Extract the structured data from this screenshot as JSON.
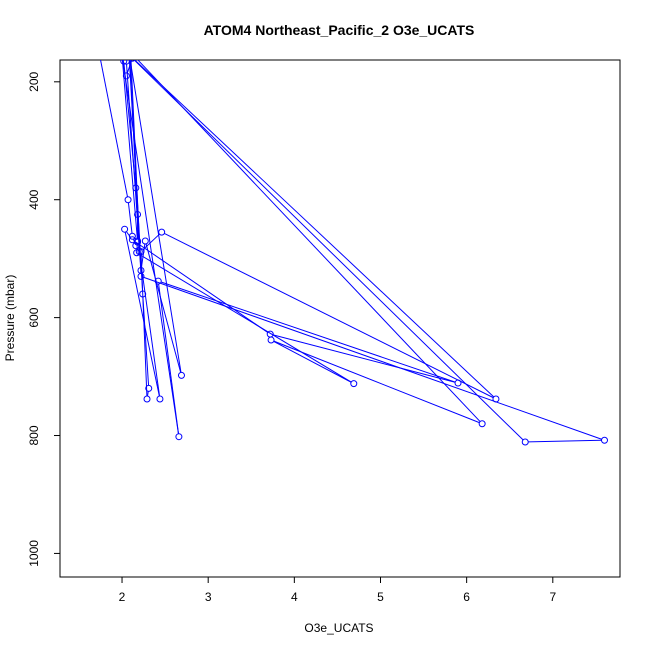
{
  "chart_data": {
    "type": "scatter",
    "title": "ATOM4 Northeast_Pacific_2 O3e_UCATS",
    "xlabel": "O3e_UCATS",
    "ylabel": "Pressure (mbar)",
    "xlim": [
      1.28,
      7.78
    ],
    "ylim": [
      1040,
      163
    ],
    "y_reversed": true,
    "x_ticks": [
      2,
      3,
      4,
      5,
      6,
      7
    ],
    "y_ticks": [
      200,
      400,
      600,
      800,
      1000
    ],
    "grid": false,
    "legend": "none",
    "color": "#0000ff",
    "series": [
      {
        "name": "",
        "points": [
          [
            1.74,
            155
          ],
          [
            2.07,
            400
          ],
          [
            2.12,
            462
          ],
          [
            2.16,
            478
          ],
          [
            2.18,
            472
          ],
          [
            2.18,
            425
          ],
          [
            2.16,
            380
          ],
          [
            2.02,
            165
          ],
          [
            2.05,
            165
          ],
          [
            2.22,
            520
          ],
          [
            2.27,
            470
          ],
          [
            2.69,
            698
          ],
          [
            2.08,
            150
          ],
          [
            2.24,
            560
          ],
          [
            2.31,
            720
          ],
          [
            2.29,
            738
          ],
          [
            2.22,
            488
          ],
          [
            2.46,
            455
          ],
          [
            6.34,
            738
          ],
          [
            2.09,
            155
          ],
          [
            2.2,
            488
          ],
          [
            2.44,
            738
          ],
          [
            2.03,
            450
          ],
          [
            2.12,
            468
          ],
          [
            3.72,
            628
          ],
          [
            5.9,
            711
          ],
          [
            2.42,
            538
          ],
          [
            2.66,
            802
          ],
          [
            2.0,
            155
          ],
          [
            2.18,
            470
          ],
          [
            2.17,
            490
          ],
          [
            4.69,
            712
          ],
          [
            3.73,
            638
          ],
          [
            6.18,
            780
          ],
          [
            2.1,
            150
          ],
          [
            2.22,
            530
          ],
          [
            7.6,
            808
          ],
          [
            6.68,
            811
          ],
          [
            2.12,
            160
          ],
          [
            2.05,
            190
          ]
        ]
      }
    ]
  }
}
